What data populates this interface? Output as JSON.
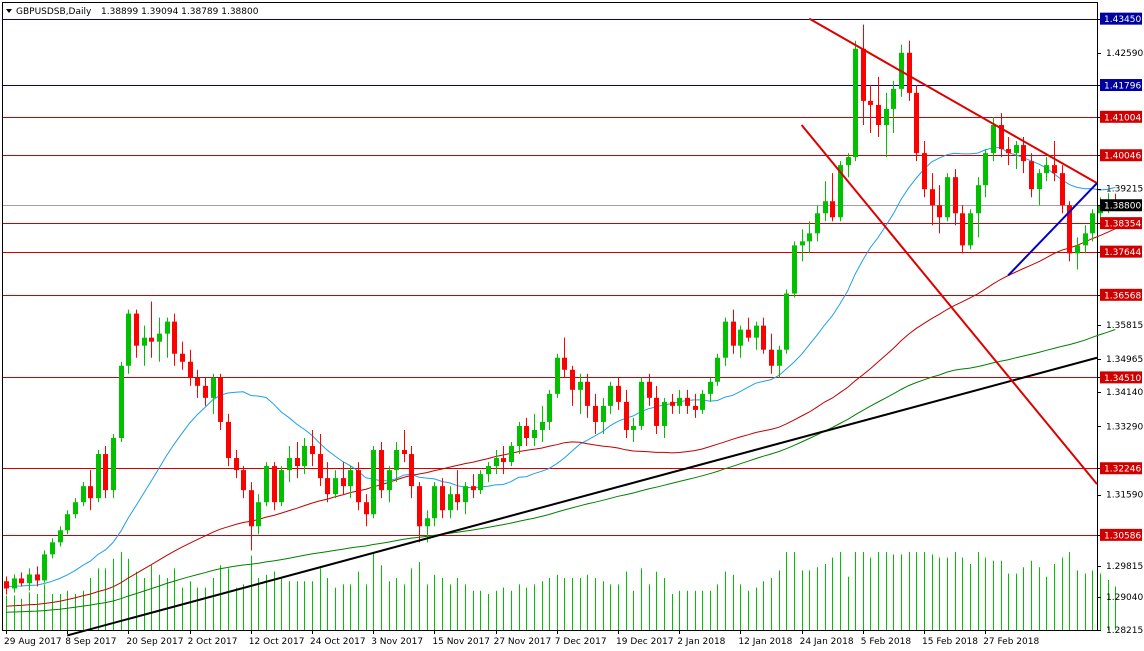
{
  "header": {
    "symbol_label": "GBPUSDSB,Daily",
    "ohlc_label": "1.38899 1.39094 1.38789 1.38800"
  },
  "chart_data": {
    "type": "candlestick",
    "y_range": [
      1.28215,
      1.4384
    ],
    "y_ticks": [
      "1.43450",
      "1.42590",
      "1.41796",
      "1.41004",
      "1.40046",
      "1.39215",
      "1.38800",
      "1.38354",
      "1.37644",
      "1.36568",
      "1.35815",
      "1.34965",
      "1.34510",
      "1.34140",
      "1.33290",
      "1.32246",
      "1.31590",
      "1.30586",
      "1.29815",
      "1.29040",
      "1.28215"
    ],
    "x_labels": [
      "29 Aug 2017",
      "8 Sep 2017",
      "20 Sep 2017",
      "2 Oct 2017",
      "12 Oct 2017",
      "24 Oct 2017",
      "3 Nov 2017",
      "15 Nov 2017",
      "27 Nov 2017",
      "7 Dec 2017",
      "19 Dec 2017",
      "2 Jan 2018",
      "12 Jan 2018",
      "24 Jan 2018",
      "5 Feb 2018",
      "15 Feb 2018",
      "27 Feb 2018"
    ],
    "x_label_index": [
      0,
      8,
      16,
      24,
      32,
      40,
      48,
      56,
      64,
      72,
      80,
      88,
      96,
      104,
      112,
      120,
      128
    ],
    "bull_color": "#00c000",
    "bear_color": "#ff0000",
    "ma_colors": [
      "#1ea0e6",
      "#c00000",
      "#008000"
    ],
    "levels": [
      {
        "value": "1.43450",
        "color": "#0000a0"
      },
      {
        "value": "1.41796",
        "color": "#0000a0"
      },
      {
        "value": "1.41004",
        "color": "#d00000"
      },
      {
        "value": "1.40046",
        "color": "#d00000"
      },
      {
        "value": "1.38354",
        "color": "#d00000"
      },
      {
        "value": "1.37644",
        "color": "#d00000"
      },
      {
        "value": "1.36568",
        "color": "#d00000"
      },
      {
        "value": "1.34510",
        "color": "#d00000"
      },
      {
        "value": "1.32246",
        "color": "#d00000"
      },
      {
        "value": "1.30586",
        "color": "#d00000"
      }
    ],
    "current_price": {
      "value": "1.38800",
      "color": "#000000"
    },
    "trendlines": [
      {
        "name": "long-term-support",
        "color": "#000000",
        "from": [
          8,
          1.2808
        ],
        "to": [
          143,
          1.35
        ]
      },
      {
        "name": "upper-resistance",
        "color": "#dd0000",
        "from": [
          105,
          1.4345
        ],
        "to": [
          143,
          1.3935
        ]
      },
      {
        "name": "descending-channel-lower",
        "color": "#dd0000",
        "from": [
          104,
          1.408
        ],
        "to": [
          143,
          1.3185
        ]
      },
      {
        "name": "short-term-support",
        "color": "#0000cc",
        "from": [
          131,
          1.3705
        ],
        "to": [
          143,
          1.3935
        ]
      }
    ],
    "candles": [
      [
        1.2943,
        1.2955,
        1.291,
        1.2925
      ],
      [
        1.2925,
        1.296,
        1.2915,
        1.295
      ],
      [
        1.295,
        1.2965,
        1.293,
        1.2938
      ],
      [
        1.2938,
        1.2975,
        1.292,
        1.296
      ],
      [
        1.296,
        1.298,
        1.293,
        1.2945
      ],
      [
        1.2945,
        1.302,
        1.294,
        1.301
      ],
      [
        1.301,
        1.305,
        1.3,
        1.304
      ],
      [
        1.304,
        1.308,
        1.303,
        1.307
      ],
      [
        1.307,
        1.312,
        1.306,
        1.311
      ],
      [
        1.311,
        1.315,
        1.31,
        1.314
      ],
      [
        1.314,
        1.319,
        1.313,
        1.318
      ],
      [
        1.318,
        1.322,
        1.312,
        1.315
      ],
      [
        1.315,
        1.327,
        1.314,
        1.326
      ],
      [
        1.326,
        1.328,
        1.315,
        1.317
      ],
      [
        1.317,
        1.331,
        1.315,
        1.33
      ],
      [
        1.33,
        1.349,
        1.329,
        1.348
      ],
      [
        1.348,
        1.362,
        1.346,
        1.361
      ],
      [
        1.361,
        1.362,
        1.35,
        1.353
      ],
      [
        1.353,
        1.358,
        1.348,
        1.355
      ],
      [
        1.355,
        1.364,
        1.35,
        1.354
      ],
      [
        1.354,
        1.36,
        1.349,
        1.356
      ],
      [
        1.356,
        1.36,
        1.35,
        1.359
      ],
      [
        1.359,
        1.361,
        1.348,
        1.351
      ],
      [
        1.351,
        1.354,
        1.347,
        1.349
      ],
      [
        1.349,
        1.352,
        1.343,
        1.345
      ],
      [
        1.345,
        1.347,
        1.34,
        1.343
      ],
      [
        1.343,
        1.345,
        1.338,
        1.34
      ],
      [
        1.34,
        1.346,
        1.336,
        1.345
      ],
      [
        1.345,
        1.346,
        1.332,
        1.334
      ],
      [
        1.334,
        1.336,
        1.323,
        1.325
      ],
      [
        1.325,
        1.327,
        1.32,
        1.322
      ],
      [
        1.322,
        1.323,
        1.315,
        1.317
      ],
      [
        1.317,
        1.319,
        1.302,
        1.308
      ],
      [
        1.308,
        1.316,
        1.306,
        1.314
      ],
      [
        1.314,
        1.324,
        1.313,
        1.323
      ],
      [
        1.323,
        1.324,
        1.312,
        1.314
      ],
      [
        1.314,
        1.323,
        1.313,
        1.322
      ],
      [
        1.322,
        1.328,
        1.319,
        1.325
      ],
      [
        1.325,
        1.329,
        1.32,
        1.323
      ],
      [
        1.323,
        1.33,
        1.321,
        1.328
      ],
      [
        1.328,
        1.332,
        1.323,
        1.326
      ],
      [
        1.326,
        1.331,
        1.318,
        1.32
      ],
      [
        1.32,
        1.324,
        1.314,
        1.316
      ],
      [
        1.316,
        1.322,
        1.315,
        1.32
      ],
      [
        1.32,
        1.324,
        1.316,
        1.318
      ],
      [
        1.318,
        1.323,
        1.315,
        1.322
      ],
      [
        1.322,
        1.324,
        1.312,
        1.314
      ],
      [
        1.314,
        1.316,
        1.308,
        1.311
      ],
      [
        1.311,
        1.328,
        1.31,
        1.327
      ],
      [
        1.327,
        1.329,
        1.315,
        1.317
      ],
      [
        1.317,
        1.323,
        1.314,
        1.322
      ],
      [
        1.322,
        1.329,
        1.319,
        1.327
      ],
      [
        1.327,
        1.332,
        1.324,
        1.326
      ],
      [
        1.326,
        1.328,
        1.315,
        1.318
      ],
      [
        1.318,
        1.319,
        1.304,
        1.308
      ],
      [
        1.308,
        1.312,
        1.304,
        1.31
      ],
      [
        1.31,
        1.319,
        1.308,
        1.318
      ],
      [
        1.318,
        1.32,
        1.31,
        1.312
      ],
      [
        1.312,
        1.318,
        1.31,
        1.316
      ],
      [
        1.316,
        1.322,
        1.312,
        1.314
      ],
      [
        1.314,
        1.319,
        1.311,
        1.318
      ],
      [
        1.318,
        1.321,
        1.315,
        1.317
      ],
      [
        1.317,
        1.322,
        1.316,
        1.321
      ],
      [
        1.321,
        1.324,
        1.319,
        1.323
      ],
      [
        1.323,
        1.327,
        1.321,
        1.325
      ],
      [
        1.325,
        1.328,
        1.321,
        1.324
      ],
      [
        1.324,
        1.329,
        1.323,
        1.328
      ],
      [
        1.328,
        1.334,
        1.326,
        1.333
      ],
      [
        1.333,
        1.335,
        1.328,
        1.33
      ],
      [
        1.33,
        1.336,
        1.328,
        1.332
      ],
      [
        1.332,
        1.338,
        1.329,
        1.334
      ],
      [
        1.334,
        1.342,
        1.332,
        1.341
      ],
      [
        1.341,
        1.351,
        1.34,
        1.35
      ],
      [
        1.35,
        1.355,
        1.345,
        1.347
      ],
      [
        1.347,
        1.348,
        1.338,
        1.342
      ],
      [
        1.342,
        1.346,
        1.336,
        1.344
      ],
      [
        1.344,
        1.346,
        1.335,
        1.338
      ],
      [
        1.338,
        1.341,
        1.331,
        1.334
      ],
      [
        1.334,
        1.34,
        1.331,
        1.338
      ],
      [
        1.338,
        1.344,
        1.336,
        1.343
      ],
      [
        1.343,
        1.345,
        1.337,
        1.339
      ],
      [
        1.339,
        1.342,
        1.33,
        1.332
      ],
      [
        1.332,
        1.335,
        1.329,
        1.333
      ],
      [
        1.333,
        1.345,
        1.332,
        1.344
      ],
      [
        1.344,
        1.346,
        1.338,
        1.34
      ],
      [
        1.34,
        1.343,
        1.331,
        1.333
      ],
      [
        1.333,
        1.34,
        1.33,
        1.339
      ],
      [
        1.339,
        1.341,
        1.336,
        1.338
      ],
      [
        1.338,
        1.342,
        1.336,
        1.34
      ],
      [
        1.34,
        1.342,
        1.336,
        1.338
      ],
      [
        1.338,
        1.341,
        1.335,
        1.337
      ],
      [
        1.337,
        1.342,
        1.336,
        1.341
      ],
      [
        1.341,
        1.345,
        1.339,
        1.344
      ],
      [
        1.344,
        1.351,
        1.343,
        1.35
      ],
      [
        1.35,
        1.36,
        1.348,
        1.359
      ],
      [
        1.359,
        1.362,
        1.351,
        1.353
      ],
      [
        1.353,
        1.358,
        1.35,
        1.357
      ],
      [
        1.357,
        1.36,
        1.354,
        1.355
      ],
      [
        1.355,
        1.359,
        1.352,
        1.358
      ],
      [
        1.358,
        1.36,
        1.351,
        1.352
      ],
      [
        1.352,
        1.356,
        1.346,
        1.348
      ],
      [
        1.348,
        1.353,
        1.345,
        1.352
      ],
      [
        1.352,
        1.367,
        1.351,
        1.366
      ],
      [
        1.366,
        1.379,
        1.365,
        1.378
      ],
      [
        1.378,
        1.382,
        1.374,
        1.379
      ],
      [
        1.379,
        1.384,
        1.376,
        1.381
      ],
      [
        1.381,
        1.388,
        1.379,
        1.386
      ],
      [
        1.386,
        1.394,
        1.384,
        1.389
      ],
      [
        1.389,
        1.396,
        1.384,
        1.385
      ],
      [
        1.385,
        1.399,
        1.384,
        1.398
      ],
      [
        1.398,
        1.401,
        1.395,
        1.4
      ],
      [
        1.4,
        1.429,
        1.399,
        1.427
      ],
      [
        1.427,
        1.433,
        1.408,
        1.414
      ],
      [
        1.414,
        1.418,
        1.406,
        1.413
      ],
      [
        1.413,
        1.42,
        1.405,
        1.408
      ],
      [
        1.408,
        1.416,
        1.4,
        1.412
      ],
      [
        1.412,
        1.419,
        1.406,
        1.417
      ],
      [
        1.417,
        1.428,
        1.415,
        1.426
      ],
      [
        1.426,
        1.429,
        1.414,
        1.416
      ],
      [
        1.416,
        1.418,
        1.399,
        1.401
      ],
      [
        1.401,
        1.404,
        1.39,
        1.392
      ],
      [
        1.392,
        1.396,
        1.383,
        1.388
      ],
      [
        1.388,
        1.393,
        1.381,
        1.385
      ],
      [
        1.385,
        1.396,
        1.384,
        1.395
      ],
      [
        1.395,
        1.397,
        1.383,
        1.386
      ],
      [
        1.386,
        1.388,
        1.376,
        1.378
      ],
      [
        1.378,
        1.387,
        1.377,
        1.386
      ],
      [
        1.386,
        1.395,
        1.38,
        1.393
      ],
      [
        1.393,
        1.402,
        1.39,
        1.401
      ],
      [
        1.401,
        1.41,
        1.399,
        1.408
      ],
      [
        1.408,
        1.411,
        1.4,
        1.402
      ],
      [
        1.402,
        1.405,
        1.398,
        1.401
      ],
      [
        1.401,
        1.404,
        1.397,
        1.403
      ],
      [
        1.403,
        1.405,
        1.396,
        1.399
      ],
      [
        1.399,
        1.401,
        1.39,
        1.392
      ],
      [
        1.392,
        1.397,
        1.388,
        1.396
      ],
      [
        1.396,
        1.4,
        1.394,
        1.398
      ],
      [
        1.398,
        1.404,
        1.394,
        1.396
      ],
      [
        1.396,
        1.398,
        1.386,
        1.388
      ],
      [
        1.388,
        1.389,
        1.374,
        1.376
      ],
      [
        1.376,
        1.38,
        1.372,
        1.378
      ],
      [
        1.378,
        1.383,
        1.376,
        1.381
      ],
      [
        1.381,
        1.387,
        1.379,
        1.386
      ],
      [
        1.386,
        1.39,
        1.383,
        1.388
      ],
      [
        1.388,
        1.391,
        1.386,
        1.389
      ],
      [
        1.389,
        1.3909,
        1.3879,
        1.388
      ]
    ]
  }
}
